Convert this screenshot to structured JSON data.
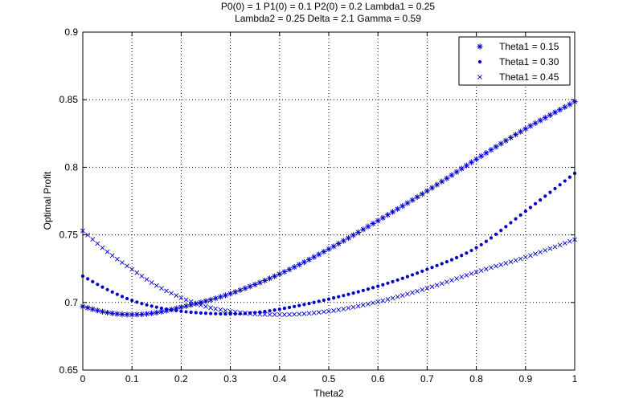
{
  "chart_data": {
    "type": "scatter",
    "title_line1": "P0(0) = 1 P1(0) = 0.1 P2(0) = 0.2 Lambda1 = 0.25",
    "title_line2": "Lambda2 = 0.25 Delta = 2.1 Gamma = 0.59",
    "xlabel": "Theta2",
    "ylabel": "Optimal Profit",
    "xlim": [
      0,
      1
    ],
    "ylim": [
      0.65,
      0.9
    ],
    "xticks": [
      0,
      0.1,
      0.2,
      0.3,
      0.4,
      0.5,
      0.6,
      0.7,
      0.8,
      0.9,
      1
    ],
    "yticks": [
      0.65,
      0.7,
      0.75,
      0.8,
      0.85,
      0.9
    ],
    "xtick_labels": [
      "0",
      "0.1",
      "0.2",
      "0.3",
      "0.4",
      "0.5",
      "0.6",
      "0.7",
      "0.8",
      "0.9",
      "1"
    ],
    "ytick_labels": [
      "0.65",
      "0.7",
      "0.75",
      "0.8",
      "0.85",
      "0.9"
    ],
    "grid": true,
    "legend_position": "top-right",
    "marker_color": "#0000cc",
    "x_step": 0.01,
    "series": [
      {
        "name": "Theta1 = 0.15",
        "marker": "asterisk",
        "key_points": [
          [
            0,
            0.697
          ],
          [
            0.05,
            0.6925
          ],
          [
            0.1,
            0.691
          ],
          [
            0.15,
            0.6925
          ],
          [
            0.2,
            0.6965
          ],
          [
            0.25,
            0.701
          ],
          [
            0.3,
            0.7065
          ],
          [
            0.4,
            0.721
          ],
          [
            0.5,
            0.7395
          ],
          [
            0.6,
            0.7605
          ],
          [
            0.7,
            0.7825
          ],
          [
            0.8,
            0.806
          ],
          [
            0.9,
            0.8285
          ],
          [
            1.0,
            0.8485
          ]
        ]
      },
      {
        "name": "Theta1 = 0.30",
        "marker": "dot",
        "key_points": [
          [
            0,
            0.7195
          ],
          [
            0.05,
            0.7095
          ],
          [
            0.1,
            0.7015
          ],
          [
            0.15,
            0.6965
          ],
          [
            0.2,
            0.6935
          ],
          [
            0.25,
            0.692
          ],
          [
            0.3,
            0.6915
          ],
          [
            0.35,
            0.6925
          ],
          [
            0.4,
            0.695
          ],
          [
            0.5,
            0.7025
          ],
          [
            0.6,
            0.712
          ],
          [
            0.7,
            0.7245
          ],
          [
            0.8,
            0.7405
          ],
          [
            0.9,
            0.7675
          ],
          [
            1.0,
            0.7955
          ]
        ]
      },
      {
        "name": "Theta1 = 0.45",
        "marker": "cross",
        "key_points": [
          [
            0,
            0.753
          ],
          [
            0.05,
            0.7375
          ],
          [
            0.1,
            0.7245
          ],
          [
            0.15,
            0.7125
          ],
          [
            0.2,
            0.7035
          ],
          [
            0.25,
            0.697
          ],
          [
            0.3,
            0.6935
          ],
          [
            0.35,
            0.6915
          ],
          [
            0.4,
            0.691
          ],
          [
            0.5,
            0.6935
          ],
          [
            0.6,
            0.7005
          ],
          [
            0.7,
            0.7105
          ],
          [
            0.8,
            0.7225
          ],
          [
            0.9,
            0.7335
          ],
          [
            1.0,
            0.7465
          ]
        ]
      }
    ]
  }
}
